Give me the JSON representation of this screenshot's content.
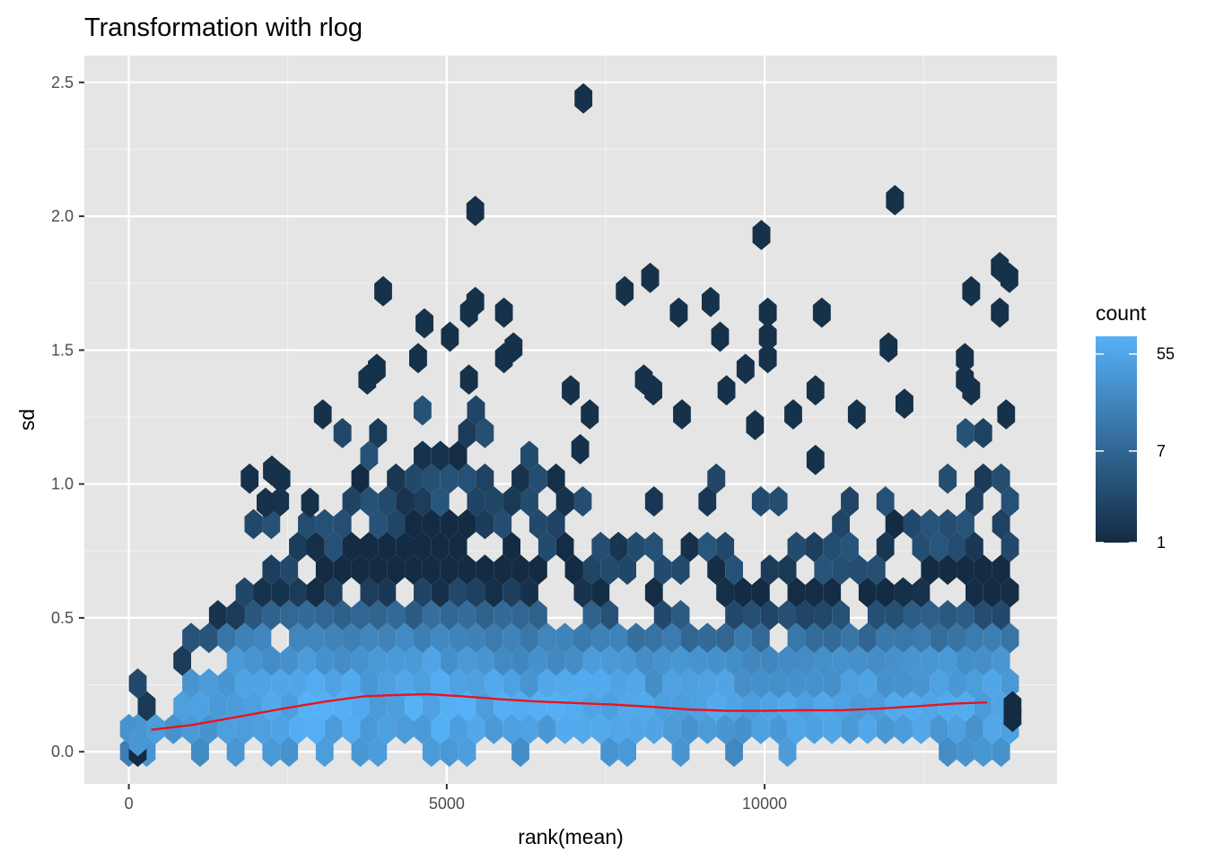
{
  "chart_data": {
    "type": "heatmap",
    "geom": "hexbin",
    "title": "Transformation with rlog",
    "xlabel": "rank(mean)",
    "ylabel": "sd",
    "xlim": [
      -700,
      14600
    ],
    "ylim": [
      -0.12,
      2.6
    ],
    "x_ticks": [
      0,
      5000,
      10000
    ],
    "x_tick_labels": [
      "0",
      "5000",
      "10000"
    ],
    "y_ticks": [
      0.0,
      0.5,
      1.0,
      1.5,
      2.0,
      2.5
    ],
    "y_tick_labels": [
      "0.0",
      "0.5",
      "1.0",
      "1.5",
      "2.0",
      "2.5"
    ],
    "grid": true,
    "panel_background": "#e5e5e5",
    "legend": {
      "title": "count",
      "placement": "right",
      "scale": "log",
      "min": 1,
      "max": 80,
      "breaks": [
        1,
        7,
        55
      ],
      "break_labels": [
        "1",
        "7",
        "55"
      ],
      "color_low": "#132b43",
      "color_high": "#56b1f7"
    },
    "smooth_line": {
      "color": "#e8141f",
      "x": [
        350,
        1000,
        1700,
        2400,
        3100,
        3700,
        4200,
        4700,
        5200,
        5800,
        6400,
        7000,
        7600,
        8200,
        8800,
        9400,
        10000,
        10600,
        11200,
        11800,
        12400,
        13000,
        13500
      ],
      "y": [
        0.082,
        0.1,
        0.13,
        0.16,
        0.188,
        0.207,
        0.212,
        0.215,
        0.208,
        0.197,
        0.188,
        0.182,
        0.176,
        0.168,
        0.158,
        0.153,
        0.153,
        0.155,
        0.155,
        0.161,
        0.17,
        0.18,
        0.184
      ]
    },
    "hex_bin_width": 280,
    "hex_bin_height": 0.085,
    "hex_density": [
      {
        "x": 0,
        "y": 0.085,
        "count": 30
      },
      {
        "x": 1000,
        "y": 0.2,
        "count": 45
      },
      {
        "x": 3000,
        "y": 0.17,
        "count": 70
      },
      {
        "x": 5000,
        "y": 0.18,
        "count": 70
      },
      {
        "x": 7000,
        "y": 0.17,
        "count": 60
      },
      {
        "x": 9000,
        "y": 0.15,
        "count": 55
      },
      {
        "x": 11000,
        "y": 0.15,
        "count": 55
      },
      {
        "x": 13000,
        "y": 0.16,
        "count": 55
      },
      {
        "x": 13800,
        "y": 0.17,
        "count": 30
      }
    ],
    "sparse_bins": [
      {
        "x": 7150,
        "y": 2.44
      },
      {
        "x": 5450,
        "y": 2.02
      },
      {
        "x": 9950,
        "y": 1.93
      },
      {
        "x": 12050,
        "y": 2.06
      },
      {
        "x": 4000,
        "y": 1.72
      },
      {
        "x": 5450,
        "y": 1.68
      },
      {
        "x": 5350,
        "y": 1.64
      },
      {
        "x": 5900,
        "y": 1.64
      },
      {
        "x": 4650,
        "y": 1.6
      },
      {
        "x": 5050,
        "y": 1.55
      },
      {
        "x": 7800,
        "y": 1.72
      },
      {
        "x": 8200,
        "y": 1.77
      },
      {
        "x": 8650,
        "y": 1.64
      },
      {
        "x": 9150,
        "y": 1.68
      },
      {
        "x": 9300,
        "y": 1.55
      },
      {
        "x": 10050,
        "y": 1.64
      },
      {
        "x": 10050,
        "y": 1.55
      },
      {
        "x": 10050,
        "y": 1.47
      },
      {
        "x": 10900,
        "y": 1.64
      },
      {
        "x": 11950,
        "y": 1.51
      },
      {
        "x": 13250,
        "y": 1.72
      },
      {
        "x": 13700,
        "y": 1.81
      },
      {
        "x": 13850,
        "y": 1.77
      },
      {
        "x": 13700,
        "y": 1.64
      },
      {
        "x": 13150,
        "y": 1.47
      },
      {
        "x": 13150,
        "y": 1.39
      },
      {
        "x": 13250,
        "y": 1.35
      },
      {
        "x": 3900,
        "y": 1.43
      },
      {
        "x": 3750,
        "y": 1.39
      },
      {
        "x": 4550,
        "y": 1.47
      },
      {
        "x": 5350,
        "y": 1.39
      },
      {
        "x": 6050,
        "y": 1.51
      },
      {
        "x": 5900,
        "y": 1.47
      },
      {
        "x": 9700,
        "y": 1.43
      },
      {
        "x": 9400,
        "y": 1.35
      },
      {
        "x": 8100,
        "y": 1.39
      },
      {
        "x": 8250,
        "y": 1.35
      },
      {
        "x": 6950,
        "y": 1.35
      },
      {
        "x": 3050,
        "y": 1.26
      },
      {
        "x": 10800,
        "y": 1.35
      },
      {
        "x": 13800,
        "y": 1.26
      },
      {
        "x": 12200,
        "y": 1.3
      },
      {
        "x": 11450,
        "y": 1.26
      },
      {
        "x": 9850,
        "y": 1.22
      },
      {
        "x": 10450,
        "y": 1.26
      },
      {
        "x": 8700,
        "y": 1.26
      },
      {
        "x": 2250,
        "y": 1.05
      },
      {
        "x": 1900,
        "y": 1.02
      },
      {
        "x": 2400,
        "y": 1.02
      },
      {
        "x": 2150,
        "y": 0.93
      },
      {
        "x": 2850,
        "y": 0.93
      },
      {
        "x": 10800,
        "y": 1.09
      },
      {
        "x": 7250,
        "y": 1.26
      },
      {
        "x": 7100,
        "y": 1.13
      }
    ]
  }
}
